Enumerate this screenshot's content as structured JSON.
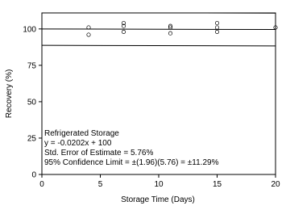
{
  "chart_data": {
    "type": "scatter",
    "x_label": "Storage Time (Days)",
    "y_label": "Recovery (%)",
    "xlim": [
      0,
      20
    ],
    "ylim": [
      0,
      111
    ],
    "xticks": [
      0,
      5,
      10,
      15,
      20
    ],
    "yticks": [
      0,
      25,
      50,
      75,
      100
    ],
    "series": [
      {
        "name": "Refrigerated Storage",
        "color": "#000000",
        "x": [
          4,
          4,
          7,
          7,
          7,
          11,
          11,
          11,
          15,
          15,
          15,
          20
        ],
        "values": [
          101,
          96,
          104,
          102,
          98,
          102,
          101,
          97,
          104,
          101,
          98,
          101
        ]
      }
    ],
    "lines": [
      {
        "x": [
          0,
          20
        ],
        "values": [
          100,
          99.596
        ]
      },
      {
        "x": [
          0,
          20
        ],
        "values": [
          111.29,
          110.886
        ]
      },
      {
        "x": [
          0,
          20
        ],
        "values": [
          88.71,
          88.306
        ]
      }
    ],
    "annotations": [
      "Refrigerated Storage",
      "y = -0.0202x + 100",
      "Std. Error of Estimate = 5.76%",
      "95% Confidence Limit = ±(1.96)(5.76) = ±11.29%"
    ]
  }
}
